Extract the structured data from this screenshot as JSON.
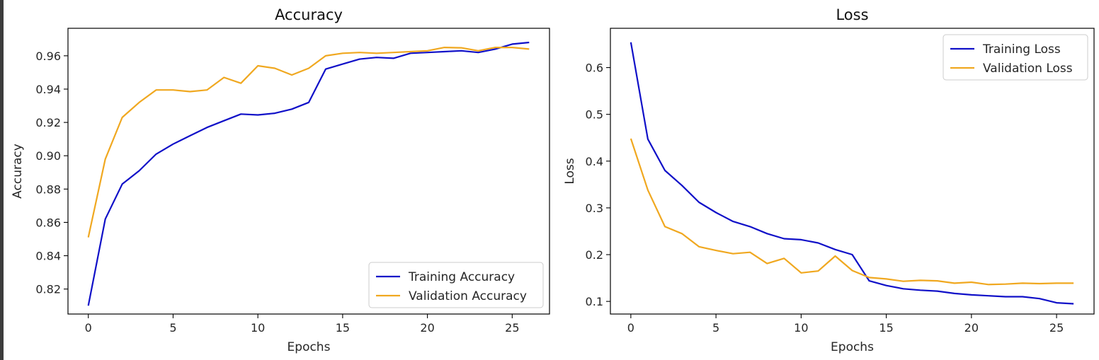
{
  "colors": {
    "training": "#1010c8",
    "validation": "#f0a820"
  },
  "chart_data": [
    {
      "type": "line",
      "title": "Accuracy",
      "xlabel": "Epochs",
      "ylabel": "Accuracy",
      "xlim": [
        -1.2,
        27.2
      ],
      "ylim": [
        0.805,
        0.9765
      ],
      "xticks": [
        0,
        5,
        10,
        15,
        20,
        25
      ],
      "yticks": [
        0.82,
        0.84,
        0.86,
        0.88,
        0.9,
        0.92,
        0.94,
        0.96
      ],
      "ytick_labels": [
        "0.82",
        "0.84",
        "0.86",
        "0.88",
        "0.90",
        "0.92",
        "0.94",
        "0.96"
      ],
      "legend_position": "lower-right",
      "grid": false,
      "x": [
        0,
        1,
        2,
        3,
        4,
        5,
        6,
        7,
        8,
        9,
        10,
        11,
        12,
        13,
        14,
        15,
        16,
        17,
        18,
        19,
        20,
        21,
        22,
        23,
        24,
        25,
        26
      ],
      "series": [
        {
          "name": "Training Accuracy",
          "color": "#1010c8",
          "values": [
            0.81,
            0.862,
            0.883,
            0.891,
            0.901,
            0.907,
            0.912,
            0.917,
            0.921,
            0.925,
            0.9245,
            0.9255,
            0.928,
            0.932,
            0.952,
            0.955,
            0.958,
            0.959,
            0.9585,
            0.9615,
            0.962,
            0.9625,
            0.963,
            0.962,
            0.964,
            0.967,
            0.968
          ]
        },
        {
          "name": "Validation Accuracy",
          "color": "#f0a820",
          "values": [
            0.851,
            0.898,
            0.923,
            0.932,
            0.9395,
            0.9395,
            0.9385,
            0.9395,
            0.947,
            0.9435,
            0.954,
            0.9525,
            0.9485,
            0.9525,
            0.96,
            0.9615,
            0.962,
            0.9615,
            0.962,
            0.9625,
            0.963,
            0.965,
            0.9648,
            0.963,
            0.965,
            0.965,
            0.964
          ]
        }
      ]
    },
    {
      "type": "line",
      "title": "Loss",
      "xlabel": "Epochs",
      "ylabel": "Loss",
      "xlim": [
        -1.2,
        27.2
      ],
      "ylim": [
        0.073,
        0.684
      ],
      "xticks": [
        0,
        5,
        10,
        15,
        20,
        25
      ],
      "yticks": [
        0.1,
        0.2,
        0.3,
        0.4,
        0.5,
        0.6
      ],
      "ytick_labels": [
        "0.1",
        "0.2",
        "0.3",
        "0.4",
        "0.5",
        "0.6"
      ],
      "legend_position": "upper-right",
      "grid": false,
      "x": [
        0,
        1,
        2,
        3,
        4,
        5,
        6,
        7,
        8,
        9,
        10,
        11,
        12,
        13,
        14,
        15,
        16,
        17,
        18,
        19,
        20,
        21,
        22,
        23,
        24,
        25,
        26
      ],
      "series": [
        {
          "name": "Training Loss",
          "color": "#1010c8",
          "values": [
            0.654,
            0.447,
            0.38,
            0.348,
            0.312,
            0.29,
            0.271,
            0.26,
            0.245,
            0.234,
            0.232,
            0.225,
            0.211,
            0.2,
            0.144,
            0.134,
            0.127,
            0.124,
            0.122,
            0.117,
            0.114,
            0.112,
            0.11,
            0.11,
            0.106,
            0.097,
            0.095
          ]
        },
        {
          "name": "Validation Loss",
          "color": "#f0a820",
          "values": [
            0.448,
            0.338,
            0.26,
            0.245,
            0.217,
            0.209,
            0.202,
            0.205,
            0.181,
            0.192,
            0.161,
            0.165,
            0.197,
            0.166,
            0.151,
            0.148,
            0.143,
            0.145,
            0.144,
            0.139,
            0.141,
            0.136,
            0.137,
            0.139,
            0.138,
            0.139,
            0.139
          ]
        }
      ]
    }
  ]
}
